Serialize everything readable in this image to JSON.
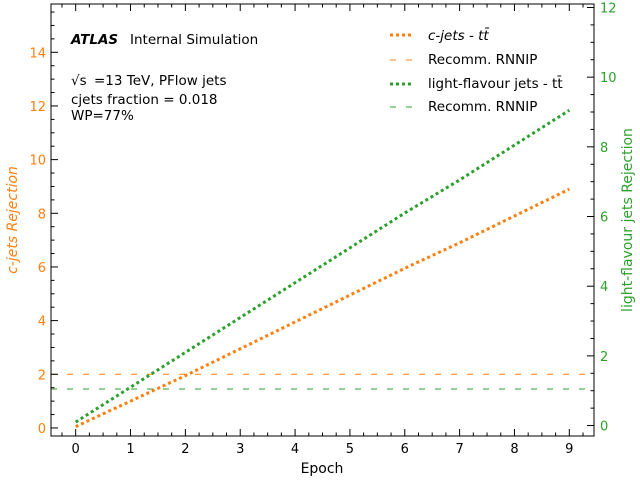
{
  "chart_data": {
    "type": "line",
    "annotations": {
      "brand": "ATLAS",
      "label": "Internal Simulation",
      "line1": "=13 TeV, PFlow jets",
      "sqrt_s": "√s",
      "line2": "cjets fraction = 0.018",
      "line3": "WP=77%"
    },
    "xlabel": "Epoch",
    "ylabel_left": "c-jets Rejection",
    "ylabel_right": "light-flavour jets Rejection",
    "x": [
      0,
      1,
      2,
      3,
      4,
      5,
      6,
      7,
      8,
      9
    ],
    "xlim": [
      -0.45,
      9.45
    ],
    "ylim_left": [
      -0.3,
      15.8
    ],
    "ylim_right": [
      -0.3,
      12.1
    ],
    "xticks": [
      0,
      1,
      2,
      3,
      4,
      5,
      6,
      7,
      8,
      9
    ],
    "yticks_left": [
      0,
      2,
      4,
      6,
      8,
      10,
      12,
      14
    ],
    "yticks_right": [
      0,
      2,
      4,
      6,
      8,
      10,
      12
    ],
    "series": [
      {
        "name": "c-jets - tt̄",
        "axis": "left",
        "style": "dotted",
        "color": "#ff7f0e",
        "values": [
          0.05,
          1.0,
          1.95,
          2.95,
          3.95,
          4.95,
          5.95,
          6.9,
          7.9,
          8.9
        ]
      },
      {
        "name": "Recomm. RNNIP",
        "axis": "left",
        "style": "dashed",
        "color": "#ff7f0e",
        "constant": 2.0
      },
      {
        "name": "light-flavour jets - tt̄",
        "axis": "right",
        "style": "dotted",
        "color": "#2ca02c",
        "values": [
          0.1,
          1.1,
          2.1,
          3.1,
          4.1,
          5.1,
          6.1,
          7.05,
          8.05,
          9.05
        ]
      },
      {
        "name": "Recomm. RNNIP",
        "axis": "right",
        "style": "dashed",
        "color": "#2ca02c",
        "constant": 1.05
      }
    ],
    "legend_placement": "top-right",
    "grid": false
  }
}
